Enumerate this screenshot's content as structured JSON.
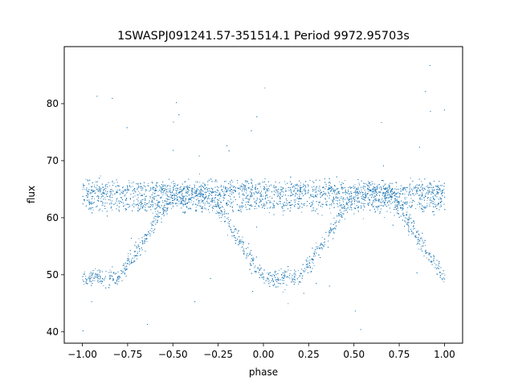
{
  "chart_data": {
    "type": "scatter",
    "title": "1SWASPJ091241.57-351514.1 Period 9972.95703s",
    "xlabel": "phase",
    "ylabel": "flux",
    "xlim": [
      -1.1,
      1.1
    ],
    "ylim": [
      38,
      90
    ],
    "xticks": [
      "−1.00",
      "−0.75",
      "−0.50",
      "−0.25",
      "0.00",
      "0.25",
      "0.50",
      "0.75",
      "1.00"
    ],
    "xtick_values": [
      -1.0,
      -0.75,
      -0.5,
      -0.25,
      0.0,
      0.25,
      0.5,
      0.75,
      1.0
    ],
    "yticks": [
      "40",
      "50",
      "60",
      "70",
      "80"
    ],
    "ytick_values": [
      40,
      50,
      60,
      70,
      80
    ],
    "grid": false,
    "legend": "none",
    "marker_color": "#1f77b4",
    "series_model": {
      "phase_range": [
        -1.0,
        1.0
      ],
      "baseline_flux_upper": 65.0,
      "baseline_flux_lower": 62.5,
      "eclipse_centers": [
        -0.9,
        0.1
      ],
      "eclipse_min_flux": 49.5,
      "eclipse_flat_halfwidth": 0.1,
      "eclipse_halfwidth_total": 0.4,
      "scatter_sigma": 0.8,
      "outlier_range": [
        40,
        87
      ]
    },
    "points": [
      {
        "x": -1.0,
        "y": 65.0
      },
      {
        "x": -1.0,
        "y": 62.5
      },
      {
        "x": -1.0,
        "y": 49.7
      },
      {
        "x": -0.9,
        "y": 49.5
      },
      {
        "x": -0.8,
        "y": 49.8
      },
      {
        "x": -0.7,
        "y": 55.0
      },
      {
        "x": -0.6,
        "y": 59.5
      },
      {
        "x": -0.5,
        "y": 62.5
      },
      {
        "x": -0.4,
        "y": 64.0
      },
      {
        "x": -0.3,
        "y": 61.0
      },
      {
        "x": -0.2,
        "y": 57.0
      },
      {
        "x": -0.1,
        "y": 53.0
      },
      {
        "x": 0.0,
        "y": 49.7
      },
      {
        "x": 0.1,
        "y": 49.5
      },
      {
        "x": 0.2,
        "y": 49.8
      },
      {
        "x": 0.3,
        "y": 55.0
      },
      {
        "x": 0.4,
        "y": 59.5
      },
      {
        "x": 0.5,
        "y": 62.5
      },
      {
        "x": 0.6,
        "y": 64.0
      },
      {
        "x": 0.7,
        "y": 61.0
      },
      {
        "x": 0.8,
        "y": 57.0
      },
      {
        "x": 0.9,
        "y": 53.0
      },
      {
        "x": 1.0,
        "y": 50.0
      },
      {
        "x": -0.6,
        "y": 65.0
      },
      {
        "x": 0.0,
        "y": 65.0
      },
      {
        "x": 0.6,
        "y": 65.0
      },
      {
        "x": -0.6,
        "y": 62.5
      },
      {
        "x": 0.0,
        "y": 62.5
      },
      {
        "x": 0.6,
        "y": 62.5
      }
    ]
  }
}
